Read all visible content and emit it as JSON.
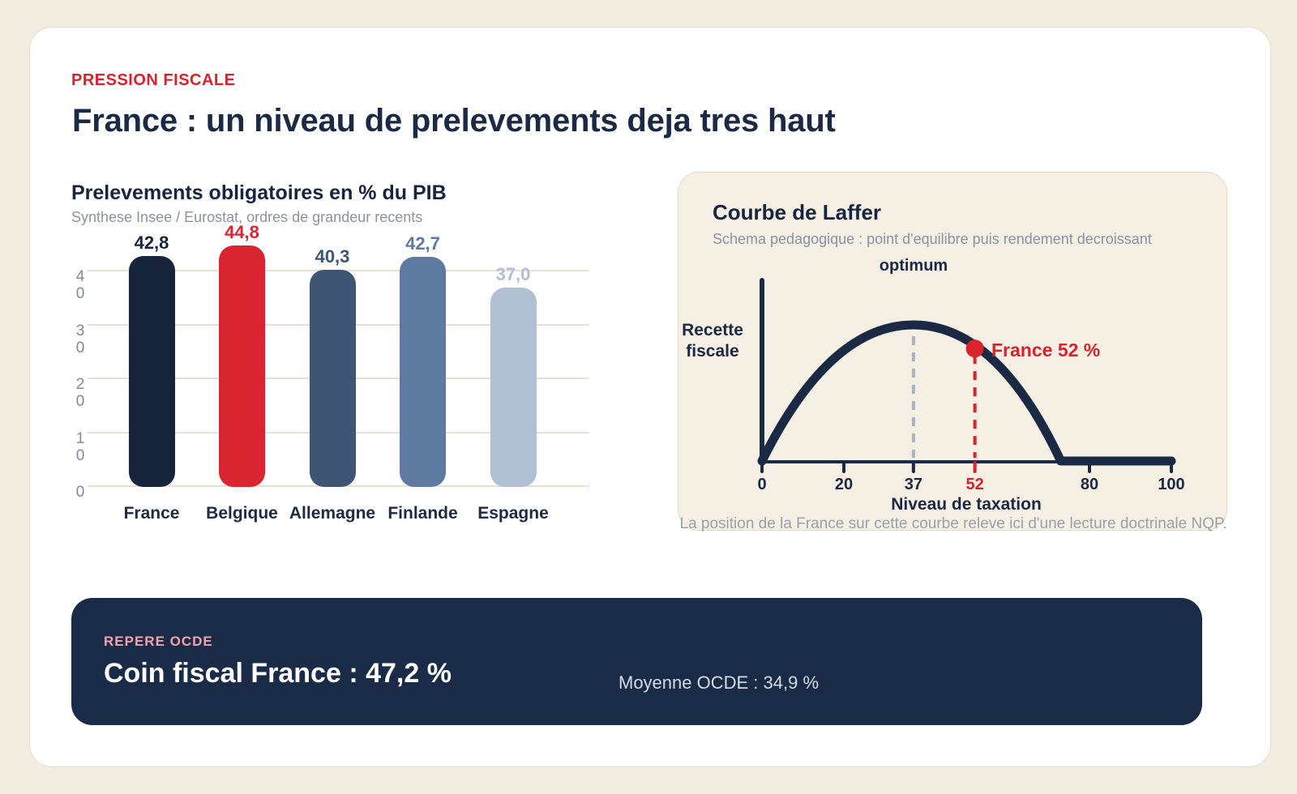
{
  "page": {
    "kicker": "PRESSION FISCALE",
    "title": "France : un niveau de prelevements deja tres haut"
  },
  "chart_data": [
    {
      "type": "bar",
      "title": "Prelevements obligatoires en % du PIB",
      "subtitle": "Synthese Insee / Eurostat, ordres de grandeur recents",
      "categories": [
        "France",
        "Belgique",
        "Allemagne",
        "Finlande",
        "Espagne"
      ],
      "values": [
        42.8,
        44.8,
        40.3,
        42.7,
        37.0
      ],
      "value_labels": [
        "42,8",
        "44,8",
        "40,3",
        "42,7",
        "37,0"
      ],
      "bar_colors": [
        "#16243c",
        "#d9252f",
        "#3e5573",
        "#5f7aa1",
        "#b2c0d3"
      ],
      "highlight_category": "Belgique",
      "xlabel": "",
      "ylabel": "",
      "ylim": [
        0,
        45
      ],
      "y_ticks": [
        40,
        30,
        20,
        10,
        0
      ],
      "grid": true,
      "legend": "none"
    },
    {
      "type": "line",
      "title": "Courbe de Laffer",
      "subtitle": "Schema pedagogique : point d'equilibre puis rendement decroissant",
      "xlabel": "Niveau de taxation",
      "ylabel": "Recette fiscale",
      "xlim": [
        0,
        100
      ],
      "x_ticks": [
        0,
        20,
        37,
        52,
        80,
        100
      ],
      "highlight_tick": 52,
      "optimum_x": 37,
      "optimum_label": "optimum",
      "curve_zero_x": 73,
      "curve_shape": "inverted-U from 0, peak at 37, falls to zero at 73, flat at zero until 100",
      "marker": {
        "x": 52,
        "label": "France 52 %"
      },
      "footnote": "La position de la France sur cette courbe releve ici d'une lecture doctrinale NQP."
    }
  ],
  "ocde_band": {
    "kicker": "REPERE OCDE",
    "headline": "Coin fiscal France : 47,2 %",
    "secondary": "Moyenne OCDE : 34,9 %"
  },
  "colors": {
    "page_bg": "#f2ece1",
    "card_bg": "#ffffff",
    "navy": "#1b2a44",
    "red": "#d8232e",
    "panel_bg": "#f6efe3",
    "panel_border": "#e8dcc7",
    "gridline": "#eae0d1",
    "axis_tick_gray": "#7e8b9e",
    "subtitle_gray": "#8d939d",
    "dashed_gray": "#a9b3c2",
    "band_bg": "#1a2b47",
    "band_pink": "#f5a3a9",
    "band_muted": "#d6dbe4"
  }
}
